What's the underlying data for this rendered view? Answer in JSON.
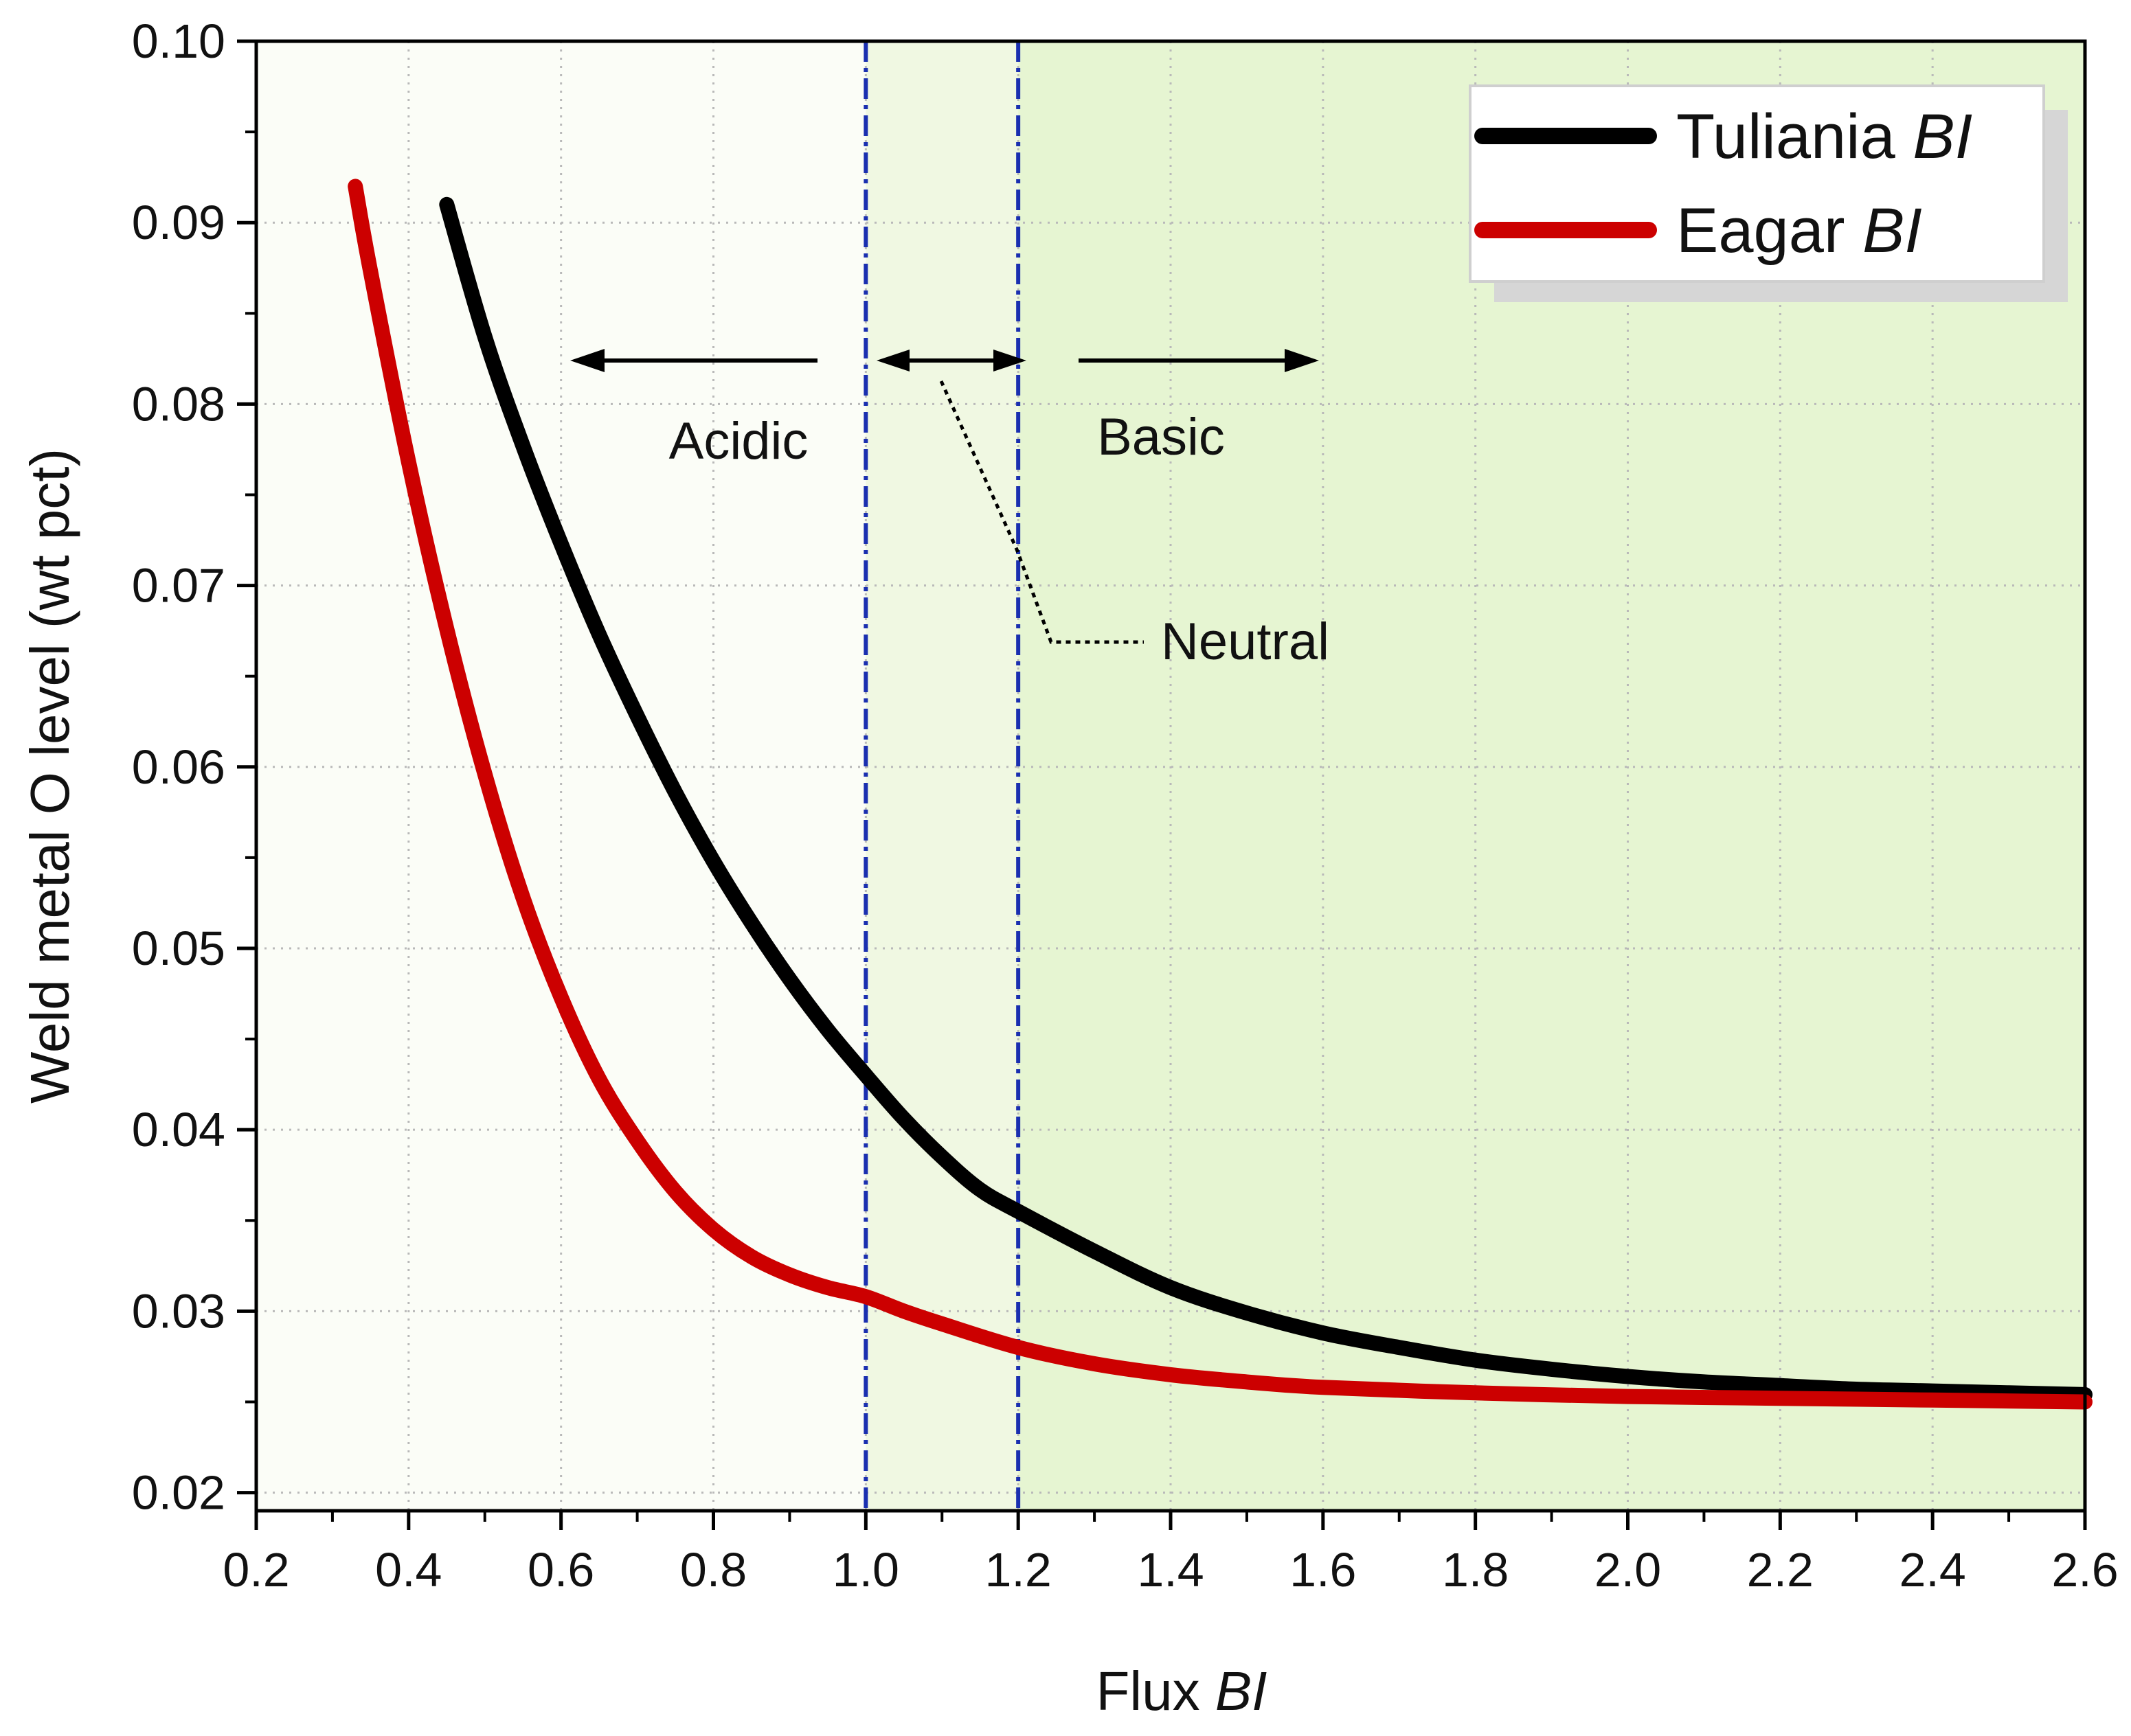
{
  "chart_data": {
    "type": "line",
    "xlabel": "Flux",
    "xlabel_italic": "BI",
    "ylabel": "Weld metal O level (wt pct)",
    "xlim": [
      0.2,
      2.6
    ],
    "ylim": [
      0.019,
      0.1
    ],
    "x_ticks": [
      0.2,
      0.4,
      0.6,
      0.8,
      1.0,
      1.2,
      1.4,
      1.6,
      1.8,
      2.0,
      2.2,
      2.4,
      2.6
    ],
    "x_tick_labels": [
      "0.2",
      "0.4",
      "0.6",
      "0.8",
      "1.0",
      "1.2",
      "1.4",
      "1.6",
      "1.8",
      "2.0",
      "2.2",
      "2.4",
      "2.6"
    ],
    "y_ticks": [
      0.02,
      0.03,
      0.04,
      0.05,
      0.06,
      0.07,
      0.08,
      0.09,
      0.1
    ],
    "y_tick_labels": [
      "0.02",
      "0.03",
      "0.04",
      "0.05",
      "0.06",
      "0.07",
      "0.08",
      "0.09",
      "0.10"
    ],
    "grid": true,
    "legend_position": "top-right",
    "regions": [
      {
        "name": "Acidic",
        "x_range": [
          0.2,
          1.0
        ],
        "color": "#fbfdf7"
      },
      {
        "name": "Neutral",
        "x_range": [
          1.0,
          1.2
        ],
        "color": "#f0f8e2"
      },
      {
        "name": "Basic",
        "x_range": [
          1.2,
          2.6
        ],
        "color": "#e6f5d2"
      }
    ],
    "boundaries": [
      1.0,
      1.2
    ],
    "boundary_color": "#1a2fb0",
    "annotations": {
      "acidic_label": "Acidic",
      "basic_label": "Basic",
      "neutral_label": "Neutral"
    },
    "series": [
      {
        "name": "Tuliania",
        "name_italic": "BI",
        "color": "#000000",
        "x": [
          0.45,
          0.5,
          0.55,
          0.6,
          0.65,
          0.7,
          0.75,
          0.8,
          0.85,
          0.9,
          0.95,
          1.0,
          1.05,
          1.1,
          1.15,
          1.2,
          1.3,
          1.4,
          1.5,
          1.6,
          1.7,
          1.8,
          1.9,
          2.0,
          2.1,
          2.2,
          2.3,
          2.4,
          2.5,
          2.6
        ],
        "values": [
          0.091,
          0.0837,
          0.0777,
          0.0723,
          0.0673,
          0.0628,
          0.0586,
          0.0548,
          0.0514,
          0.0483,
          0.0455,
          0.043,
          0.0406,
          0.0385,
          0.0367,
          0.0355,
          0.0333,
          0.0313,
          0.0299,
          0.0288,
          0.028,
          0.0273,
          0.0268,
          0.0264,
          0.0261,
          0.0259,
          0.0257,
          0.0256,
          0.0255,
          0.0254
        ]
      },
      {
        "name": "Eagar",
        "name_italic": "BI",
        "color": "#cc0000",
        "x": [
          0.33,
          0.35,
          0.4,
          0.45,
          0.5,
          0.55,
          0.6,
          0.65,
          0.7,
          0.75,
          0.8,
          0.85,
          0.9,
          0.95,
          1.0,
          1.05,
          1.1,
          1.2,
          1.3,
          1.4,
          1.5,
          1.6,
          1.8,
          2.0,
          2.2,
          2.4,
          2.6
        ],
        "values": [
          0.092,
          0.0873,
          0.0768,
          0.0676,
          0.0596,
          0.0528,
          0.0473,
          0.0428,
          0.0394,
          0.0366,
          0.0345,
          0.033,
          0.032,
          0.0313,
          0.0308,
          0.03,
          0.0293,
          0.028,
          0.0271,
          0.0265,
          0.0261,
          0.0258,
          0.0255,
          0.0253,
          0.0252,
          0.0251,
          0.025
        ]
      }
    ]
  }
}
